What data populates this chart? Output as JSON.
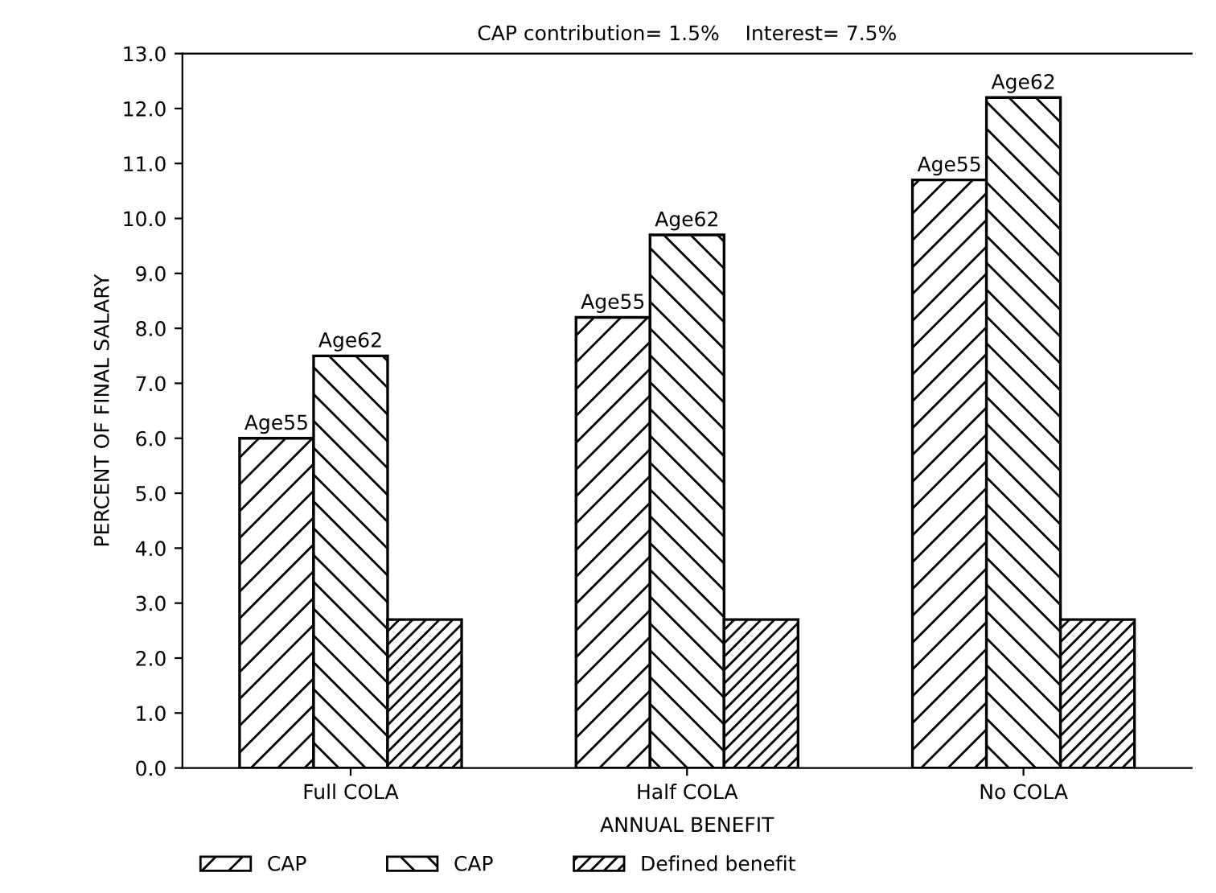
{
  "chart_data": {
    "type": "bar",
    "title": "CAP contribution= 1.5%    Interest= 7.5%",
    "xlabel": "ANNUAL BENEFIT",
    "ylabel": "PERCENT OF FINAL SALARY",
    "categories": [
      "Full COLA",
      "Half COLA",
      "No COLA"
    ],
    "series": [
      {
        "name": "CAP",
        "color": "#000000",
        "values": [
          6.0,
          8.2,
          10.7
        ],
        "value_labels": [
          "Age55",
          "Age55",
          "Age55"
        ]
      },
      {
        "name": "CAP",
        "color": "#000000",
        "values": [
          7.5,
          9.7,
          12.2
        ],
        "value_labels": [
          "Age62",
          "Age62",
          "Age62"
        ]
      },
      {
        "name": "Defined benefit",
        "color": "#000000",
        "values": [
          2.7,
          2.7,
          2.7
        ]
      }
    ],
    "ylim": [
      0,
      13
    ],
    "yticks": [
      {
        "value": 0,
        "label": "0.0"
      },
      {
        "value": 1,
        "label": "1.0"
      },
      {
        "value": 2,
        "label": "2.0"
      },
      {
        "value": 3,
        "label": "3.0"
      },
      {
        "value": 4,
        "label": "4.0"
      },
      {
        "value": 5,
        "label": "5.0"
      },
      {
        "value": 6,
        "label": "6.0"
      },
      {
        "value": 7,
        "label": "7.0"
      },
      {
        "value": 8,
        "label": "8.0"
      },
      {
        "value": 9,
        "label": "9.0"
      },
      {
        "value": 10,
        "label": "10.0"
      },
      {
        "value": 11,
        "label": "11.0"
      },
      {
        "value": 12,
        "label": "12.0"
      },
      {
        "value": 13,
        "label": "13.0"
      }
    ],
    "grid": false,
    "legend": "bottom"
  }
}
